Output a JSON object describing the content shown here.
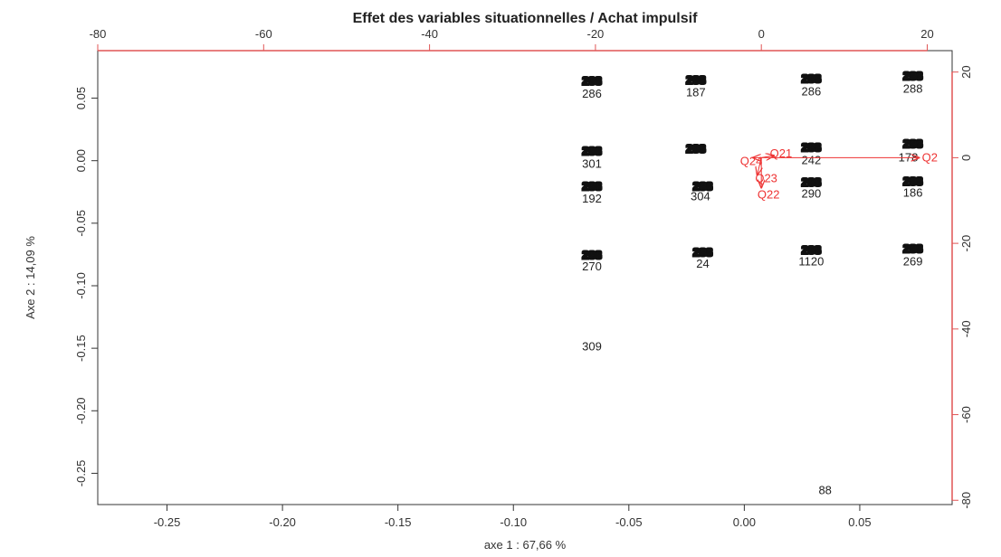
{
  "chart_data": {
    "type": "scatter",
    "title": "Effet des variables situationnelles / Achat impulsif",
    "xlabel": "axe 1 : 67,66 %",
    "ylabel": "Axe 2 : 14,09 %",
    "xlim": [
      -0.28,
      0.09
    ],
    "ylim": [
      -0.275,
      0.088
    ],
    "x_ticks": [
      "-0.25",
      "-0.20",
      "-0.15",
      "-0.10",
      "-0.05",
      "0.00",
      "0.05"
    ],
    "x_tick_values": [
      -0.25,
      -0.2,
      -0.15,
      -0.1,
      -0.05,
      0.0,
      0.05
    ],
    "y_ticks": [
      "0.05",
      "0.00",
      "-0.05",
      "-0.10",
      "-0.15",
      "-0.20",
      "-0.25"
    ],
    "y_tick_values": [
      0.05,
      0.0,
      -0.05,
      -0.1,
      -0.15,
      -0.2,
      -0.25
    ],
    "top_axis": {
      "lim": [
        -80,
        23
      ],
      "ticks": [
        "-80",
        "-60",
        "-40",
        "-20",
        "0",
        "20"
      ],
      "tick_values": [
        -80,
        -60,
        -40,
        -20,
        0,
        20
      ],
      "color": "#e05555"
    },
    "right_axis": {
      "lim": [
        -81,
        25
      ],
      "ticks": [
        "20",
        "0",
        "-20",
        "-40",
        "-60",
        "-80"
      ],
      "tick_values": [
        20,
        0,
        -20,
        -40,
        -60,
        -80
      ],
      "color": "#e05555"
    },
    "individuals": [
      {
        "label": "2̲̲",
        "x": -0.066,
        "y": 0.064,
        "overlap": true
      },
      {
        "label": "286",
        "x": -0.066,
        "y": 0.054,
        "overlap": false
      },
      {
        "label": "2̲̲",
        "x": -0.021,
        "y": 0.065,
        "overlap": true
      },
      {
        "label": "187",
        "x": -0.021,
        "y": 0.055,
        "overlap": false
      },
      {
        "label": "2̲̲",
        "x": 0.029,
        "y": 0.066,
        "overlap": true
      },
      {
        "label": "286",
        "x": 0.029,
        "y": 0.056,
        "overlap": false
      },
      {
        "label": "2̲̲",
        "x": 0.073,
        "y": 0.068,
        "overlap": true
      },
      {
        "label": "288",
        "x": 0.073,
        "y": 0.058,
        "overlap": false
      },
      {
        "label": "2̲̲",
        "x": -0.066,
        "y": 0.008,
        "overlap": true
      },
      {
        "label": "301",
        "x": -0.066,
        "y": -0.002,
        "overlap": false
      },
      {
        "label": "2̲̲",
        "x": -0.021,
        "y": 0.01,
        "overlap": true
      },
      {
        "label": "2̲̲",
        "x": 0.029,
        "y": 0.011,
        "overlap": true
      },
      {
        "label": "242",
        "x": 0.029,
        "y": 0.001,
        "overlap": false
      },
      {
        "label": "2̲̲",
        "x": 0.073,
        "y": 0.014,
        "overlap": true
      },
      {
        "label": "178",
        "x": 0.071,
        "y": 0.003,
        "overlap": false
      },
      {
        "label": "2̲̲",
        "x": -0.066,
        "y": -0.02,
        "overlap": true
      },
      {
        "label": "192",
        "x": -0.066,
        "y": -0.03,
        "overlap": false
      },
      {
        "label": "1̲̲",
        "x": -0.018,
        "y": -0.02,
        "overlap": true
      },
      {
        "label": "304",
        "x": -0.019,
        "y": -0.028,
        "overlap": false
      },
      {
        "label": "2̲̲",
        "x": 0.029,
        "y": -0.017,
        "overlap": true
      },
      {
        "label": "290",
        "x": 0.029,
        "y": -0.026,
        "overlap": false
      },
      {
        "label": "2̲̲",
        "x": 0.073,
        "y": -0.016,
        "overlap": true
      },
      {
        "label": "186",
        "x": 0.073,
        "y": -0.025,
        "overlap": false
      },
      {
        "label": "2̲̲",
        "x": -0.066,
        "y": -0.075,
        "overlap": true
      },
      {
        "label": "270",
        "x": -0.066,
        "y": -0.084,
        "overlap": false
      },
      {
        "label": "2̲̲",
        "x": -0.018,
        "y": -0.073,
        "overlap": true
      },
      {
        "label": "24",
        "x": -0.018,
        "y": -0.082,
        "overlap": false
      },
      {
        "label": "2̲̲",
        "x": 0.029,
        "y": -0.071,
        "overlap": true
      },
      {
        "label": "1120",
        "x": 0.029,
        "y": -0.08,
        "overlap": false
      },
      {
        "label": "2̲̲",
        "x": 0.073,
        "y": -0.07,
        "overlap": true
      },
      {
        "label": "269",
        "x": 0.073,
        "y": -0.08,
        "overlap": false
      },
      {
        "label": "309",
        "x": -0.066,
        "y": -0.148,
        "overlap": false
      },
      {
        "label": "88",
        "x": 0.035,
        "y": -0.263,
        "overlap": false
      }
    ],
    "variables": [
      {
        "label": "Q2",
        "x2": 19,
        "y2": 0
      },
      {
        "label": "Q21",
        "x2": 1.5,
        "y2": 0.5
      },
      {
        "label": "Q24",
        "x2": -1,
        "y2": 0
      },
      {
        "label": "Q23",
        "x2": -0.5,
        "y2": -4
      },
      {
        "label": "Q22",
        "x2": 0,
        "y2": -7
      }
    ],
    "variable_color": "#ee3333",
    "grid": false,
    "legend": "none"
  }
}
